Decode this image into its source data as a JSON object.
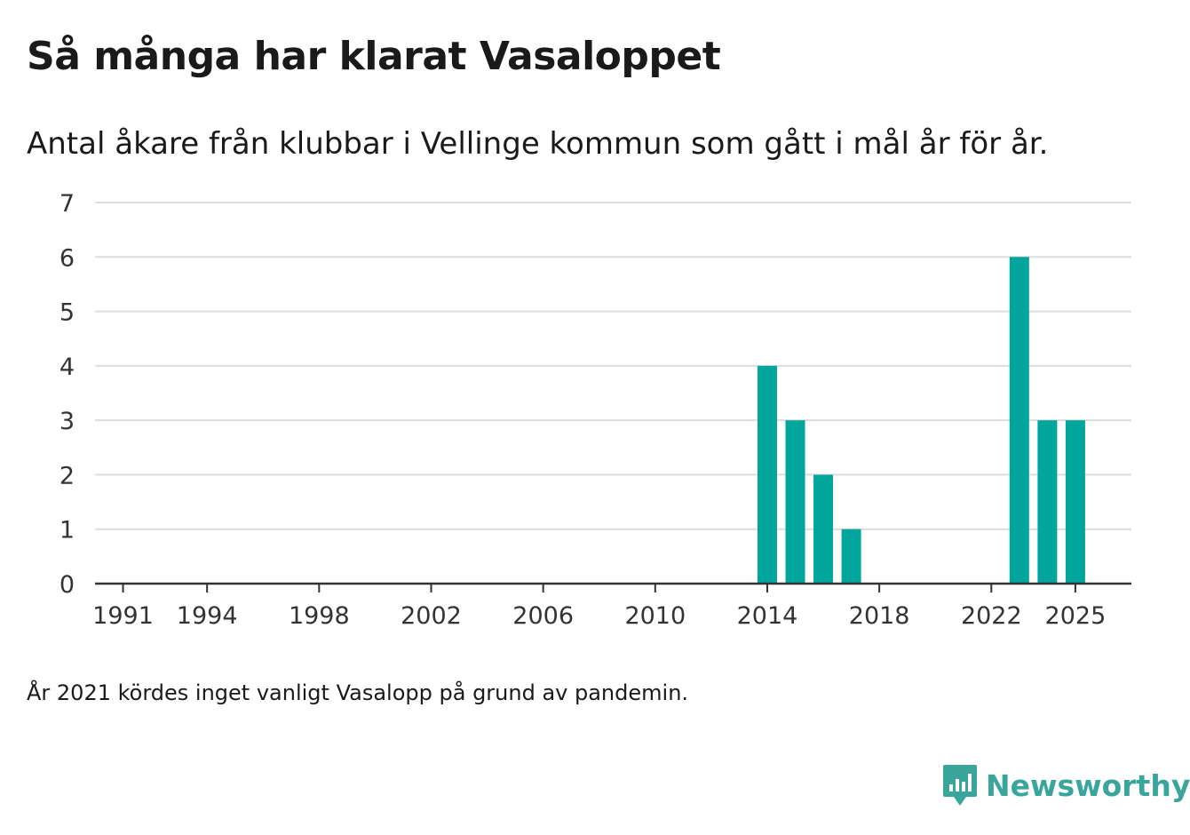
{
  "title": "Så många har klarat Vasaloppet",
  "subtitle": "Antal åkare från klubbar i Vellinge kommun som gått i mål år för år.",
  "note": "År 2021 kördes inget vanligt Vasalopp på grund av pandemin.",
  "brand": {
    "name": "Newsworthy",
    "color": "#3aa59b",
    "icon": "newsworthy-logo-icon"
  },
  "chart_data": {
    "type": "bar",
    "title": "Så många har klarat Vasaloppet",
    "xlabel": "",
    "ylabel": "",
    "ylim": [
      0,
      7
    ],
    "xlim": [
      1990,
      2027
    ],
    "grid": true,
    "bar_color": "#00a69c",
    "y_ticks": [
      0,
      1,
      2,
      3,
      4,
      5,
      6,
      7
    ],
    "x_ticks": [
      1991,
      1994,
      1998,
      2002,
      2006,
      2010,
      2014,
      2018,
      2022,
      2025
    ],
    "x": [
      2014,
      2015,
      2016,
      2017,
      2023,
      2024,
      2025
    ],
    "values": [
      4,
      3,
      2,
      1,
      6,
      3,
      3
    ]
  }
}
